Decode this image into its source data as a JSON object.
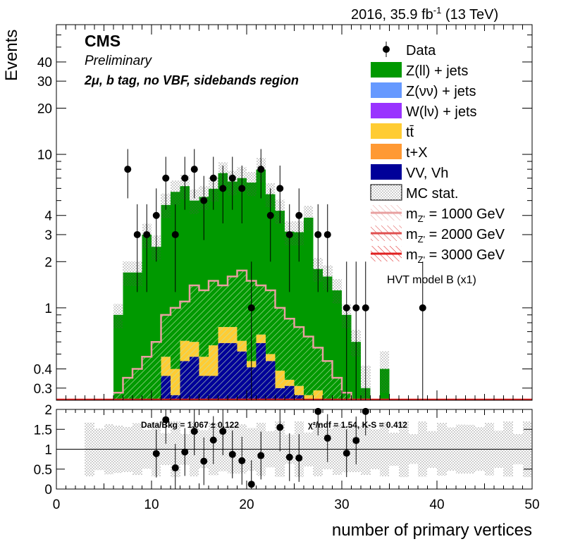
{
  "header": {
    "lumi_label": "2016, 35.9 fb",
    "lumi_sup": "-1",
    "energy_label": "(13 TeV)"
  },
  "labels": {
    "experiment": "CMS",
    "status": "Preliminary",
    "region": "2μ, b tag, no VBF, sidebands region",
    "model": "HVT model B (x1)"
  },
  "chart_data": {
    "type": "bar",
    "subtype": "stacked-histogram-with-ratio",
    "xlabel": "number of primary vertices",
    "ylabel": "Events",
    "xlim": [
      0,
      50
    ],
    "ylim": [
      0.25,
      70
    ],
    "y_scale": "log",
    "x_ticks": [
      "0",
      "10",
      "20",
      "30",
      "40",
      "50"
    ],
    "y_ticks": [
      "0.3",
      "0.4",
      "1",
      "2",
      "3",
      "4",
      "10",
      "20",
      "30",
      "40"
    ],
    "bin_edges": [
      6,
      7,
      8,
      9,
      10,
      11,
      12,
      13,
      14,
      15,
      16,
      17,
      18,
      19,
      20,
      21,
      22,
      23,
      24,
      25,
      26,
      27,
      28,
      29,
      30,
      31,
      32,
      33,
      34,
      35,
      36,
      37,
      38,
      39
    ],
    "series": [
      {
        "name": "VV, Vh",
        "color": "#000099",
        "values": [
          0,
          0,
          0,
          0,
          0,
          0.36,
          0.27,
          0.45,
          0.48,
          0.36,
          0.36,
          0.59,
          0.59,
          0.52,
          0.41,
          0.59,
          0.45,
          0.3,
          0.31,
          0.27,
          0.24,
          0,
          0,
          0,
          0,
          0,
          0,
          0,
          0,
          0,
          0,
          0,
          0
        ]
      },
      {
        "name": "t+X",
        "color": "#ff9933",
        "values": [
          0,
          0,
          0,
          0,
          0,
          0,
          0,
          0,
          0,
          0,
          0,
          0,
          0,
          0,
          0,
          0,
          0,
          0,
          0,
          0,
          0,
          0,
          0,
          0,
          0,
          0,
          0,
          0,
          0,
          0,
          0,
          0,
          0
        ]
      },
      {
        "name": "tt̄",
        "color": "#ffcc33",
        "values": [
          0,
          0,
          0,
          0,
          0,
          0.12,
          0.13,
          0.16,
          0.12,
          0.12,
          0.21,
          0.16,
          0.16,
          0.09,
          0.04,
          0.08,
          0.05,
          0.09,
          0.03,
          0.04,
          0.03,
          0.29,
          0,
          0,
          0,
          0,
          0,
          0,
          0,
          0,
          0,
          0,
          0
        ]
      },
      {
        "name": "W(lν) + jets",
        "color": "#9933ff",
        "values": [
          0,
          0,
          0,
          0,
          0,
          0,
          0,
          0,
          0,
          0,
          0,
          0,
          0,
          0,
          0,
          0,
          0,
          0,
          0,
          0,
          0,
          0,
          0,
          0,
          0,
          0,
          0,
          0,
          0,
          0,
          0,
          0,
          0
        ]
      },
      {
        "name": "Z(νν) + jets",
        "color": "#6699ff",
        "values": [
          0,
          0,
          0,
          0,
          0,
          0,
          0,
          0,
          0,
          0,
          0,
          0,
          0,
          0,
          0,
          0,
          0,
          0,
          0,
          0,
          0,
          0,
          0,
          0,
          0,
          0,
          0,
          0,
          0,
          0,
          0,
          0,
          0
        ]
      },
      {
        "name": "Z(ll) + jets",
        "color": "#009900",
        "values": [
          0.9,
          1.7,
          1.7,
          3.0,
          2.5,
          4.2,
          5.3,
          5.6,
          4.4,
          4.8,
          5.4,
          6.8,
          5.9,
          6.4,
          6.1,
          7.3,
          5.0,
          3.9,
          2.8,
          2.8,
          3.6,
          1.5,
          1.6,
          1.3,
          0.9,
          0.6,
          0.3,
          0,
          0.4,
          0,
          0,
          0,
          0
        ]
      }
    ],
    "mc_total": [
      0.9,
      1.7,
      1.7,
      3.0,
      2.5,
      4.7,
      5.7,
      6.2,
      5.0,
      5.3,
      6.0,
      7.5,
      6.6,
      7.0,
      6.5,
      8.0,
      5.5,
      4.3,
      3.1,
      3.1,
      3.9,
      1.8,
      1.6,
      1.3,
      0.9,
      0.6,
      0.3,
      0,
      0.4,
      0,
      0,
      0,
      0
    ],
    "signals": [
      {
        "name": "m_Z' = 1000 GeV",
        "label_main": "m",
        "label_sub": "Z'",
        "label_value": " = 1000 GeV",
        "color": "#e8a0a0",
        "values": [
          0.28,
          0.35,
          0.4,
          0.48,
          0.6,
          0.9,
          1.0,
          1.1,
          1.4,
          1.3,
          1.5,
          1.4,
          1.6,
          1.75,
          1.5,
          1.4,
          1.3,
          1.0,
          0.85,
          0.75,
          0.65,
          0.55,
          0.45,
          0.35,
          0.28,
          0,
          0,
          0,
          0,
          0,
          0,
          0,
          0
        ]
      },
      {
        "name": "m_Z' = 2000 GeV",
        "label_main": "m",
        "label_sub": "Z'",
        "label_value": " = 2000 GeV",
        "color": "#e05050",
        "values": []
      },
      {
        "name": "m_Z' = 3000 GeV",
        "label_main": "m",
        "label_sub": "Z'",
        "label_value": " = 3000 GeV",
        "color": "#e02020",
        "values": []
      }
    ],
    "data_points": {
      "name": "Data",
      "x": [
        7.5,
        8.5,
        9.5,
        10.5,
        11.5,
        12.5,
        13.5,
        14.5,
        15.5,
        16.5,
        17.5,
        18.5,
        19.5,
        20.5,
        21.5,
        22.5,
        23.5,
        24.5,
        25.5,
        27.5,
        28.5,
        30.5,
        31.5,
        32.5,
        38.5
      ],
      "y": [
        8,
        3,
        3,
        4,
        7,
        3,
        7,
        8,
        5,
        7,
        6,
        7,
        6,
        1,
        8,
        4,
        6,
        3,
        4,
        3,
        3,
        1,
        1,
        1,
        1
      ]
    },
    "legend": {
      "placement": "top-right",
      "entries": [
        {
          "label": "Data",
          "kind": "marker",
          "color": "#000000"
        },
        {
          "label": "Z(ll) + jets",
          "kind": "fill",
          "color": "#009900"
        },
        {
          "label": "Z(νν) + jets",
          "kind": "fill",
          "color": "#6699ff"
        },
        {
          "label": "W(lν) + jets",
          "kind": "fill",
          "color": "#9933ff"
        },
        {
          "label": "tt̄",
          "kind": "fill",
          "color": "#ffcc33"
        },
        {
          "label": "t+X",
          "kind": "fill",
          "color": "#ff9933"
        },
        {
          "label": "VV, Vh",
          "kind": "fill",
          "color": "#000099"
        },
        {
          "label": "MC stat.",
          "kind": "hatch",
          "color": "#888888"
        },
        {
          "label": "m_Z' = 1000 GeV",
          "kind": "signal",
          "color": "#e8a0a0"
        },
        {
          "label": "m_Z' = 2000 GeV",
          "kind": "signal",
          "color": "#e05050"
        },
        {
          "label": "m_Z' = 3000 GeV",
          "kind": "signal",
          "color": "#e02020"
        }
      ]
    },
    "ratio": {
      "ylabel": "",
      "ylim": [
        0,
        2
      ],
      "y_ticks": [
        "0",
        "0.5",
        "1",
        "1.5",
        "2"
      ],
      "annotation_left": "Data/Bkg = 1.067 ± 0.122",
      "annotation_right": "χ²/ndf = 1.54,   K-S = 0.412",
      "x": [
        10.5,
        11.5,
        12.5,
        13.5,
        14.5,
        15.5,
        16.5,
        17.5,
        18.5,
        19.5,
        20.5,
        21.5,
        23.5,
        24.5,
        25.5,
        27.5,
        28.5,
        30.5,
        31.5,
        32.5
      ],
      "y": [
        0.89,
        1.74,
        0.53,
        0.93,
        1.45,
        0.7,
        1.23,
        1.45,
        0.87,
        0.71,
        0.12,
        0.84,
        1.55,
        0.8,
        0.78,
        1.95,
        1.28,
        0.9,
        1.22,
        1.95
      ]
    }
  }
}
